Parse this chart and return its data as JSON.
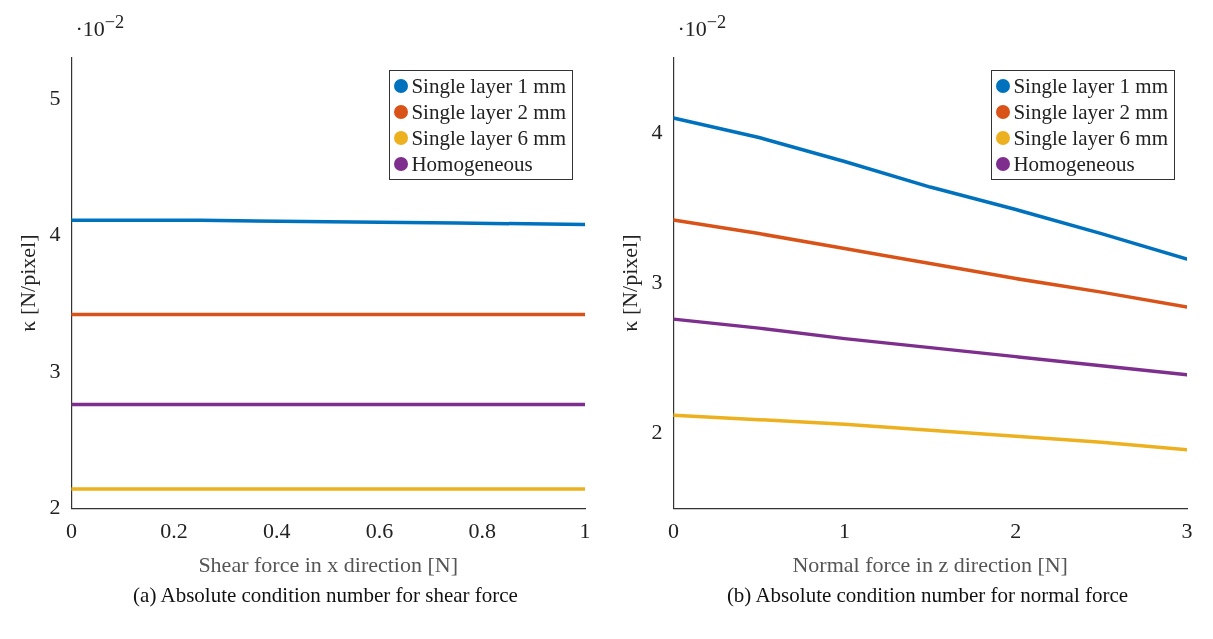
{
  "chart_data": [
    {
      "type": "line",
      "xlabel": "Shear force in x direction [N]",
      "ylabel": "κ [N/pixel]",
      "xlim": [
        0,
        1
      ],
      "xticks": [
        0,
        0.2,
        0.4,
        0.6,
        0.8,
        1
      ],
      "ylim": [
        2,
        5.3
      ],
      "yticks": [
        2,
        3,
        4,
        5
      ],
      "grid": false,
      "legend": "top right",
      "marker": "none",
      "line_style": "solid",
      "x": [
        0,
        0.25,
        0.5,
        0.75,
        1
      ],
      "series": [
        {
          "name": "Single layer 1 mm",
          "color": "#0072bd",
          "values": [
            4.11,
            4.11,
            4.1,
            4.09,
            4.08
          ]
        },
        {
          "name": "Single layer 2 mm",
          "color": "#d95319",
          "values": [
            3.42,
            3.42,
            3.42,
            3.42,
            3.42
          ]
        },
        {
          "name": "Single layer 6 mm",
          "color": "#edb120",
          "values": [
            2.14,
            2.14,
            2.14,
            2.14,
            2.14
          ]
        },
        {
          "name": "Homogeneous",
          "color": "#7e2f8e",
          "values": [
            2.76,
            2.76,
            2.76,
            2.76,
            2.76
          ]
        }
      ],
      "annotations": [
        "·10$^{−2}$",
        "(a) Absolute condition number for shear force"
      ]
    },
    {
      "type": "line",
      "xlabel": "Normal force in z direction [N]",
      "ylabel": "κ [N/pixel]",
      "xlim": [
        0,
        3
      ],
      "xticks": [
        0,
        1,
        2,
        3
      ],
      "ylim": [
        1.5,
        4.5
      ],
      "yticks": [
        2,
        3,
        4
      ],
      "grid": false,
      "legend": "top right",
      "marker": "none",
      "line_style": "solid",
      "x": [
        0,
        0.5,
        1,
        1.5,
        2,
        2.5,
        3
      ],
      "series": [
        {
          "name": "Single layer 1 mm",
          "color": "#0072bd",
          "values": [
            4.1,
            3.97,
            3.81,
            3.64,
            3.49,
            3.33,
            3.16
          ]
        },
        {
          "name": "Single layer 2 mm",
          "color": "#d95319",
          "values": [
            3.42,
            3.33,
            3.23,
            3.13,
            3.03,
            2.94,
            2.84
          ]
        },
        {
          "name": "Single layer 6 mm",
          "color": "#edb120",
          "values": [
            2.12,
            2.09,
            2.06,
            2.02,
            1.98,
            1.94,
            1.89
          ]
        },
        {
          "name": "Homogeneous",
          "color": "#7e2f8e",
          "values": [
            2.76,
            2.7,
            2.63,
            2.57,
            2.51,
            2.45,
            2.39
          ]
        }
      ],
      "annotations": [
        "·10$^{−2}$",
        "(b) Absolute condition number for normal force"
      ]
    }
  ]
}
